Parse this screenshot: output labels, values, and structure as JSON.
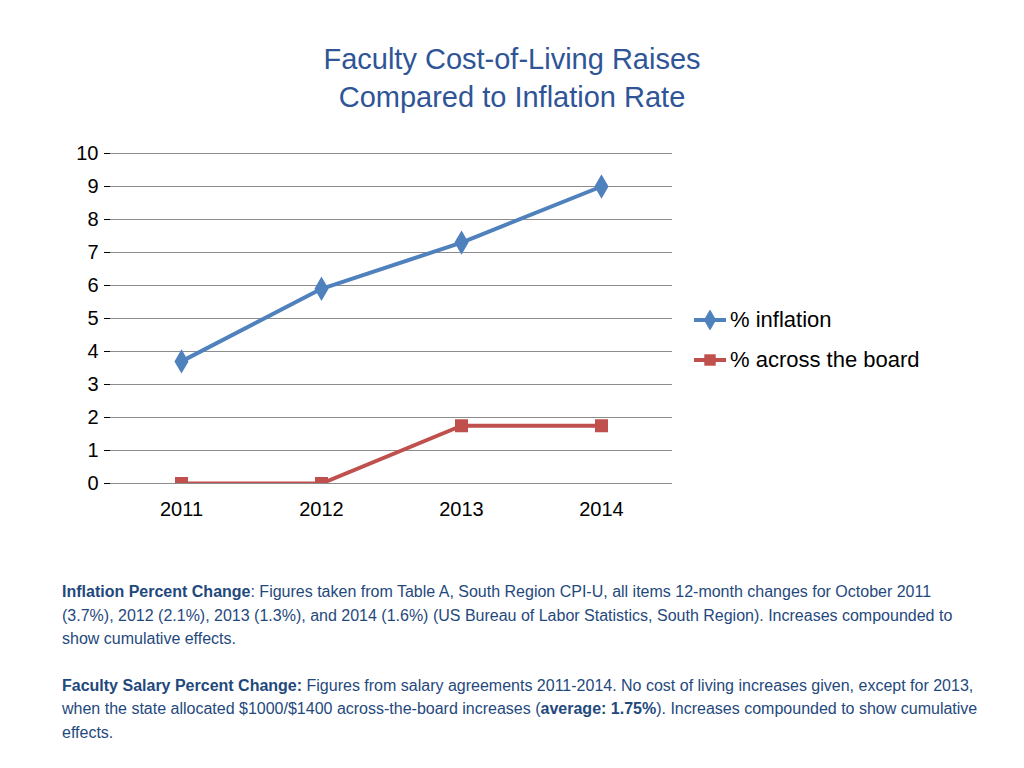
{
  "chart_data": {
    "type": "line",
    "title": "Faculty Cost-of-Living Raises",
    "subtitle": "Compared to Inflation Rate",
    "categories": [
      "2011",
      "2012",
      "2013",
      "2014"
    ],
    "series": [
      {
        "name": "% inflation",
        "color": "#4F81BD",
        "marker": "diamond",
        "values": [
          3.7,
          5.9,
          7.3,
          9.0
        ]
      },
      {
        "name": "% across the board",
        "color": "#C0504D",
        "marker": "square",
        "values": [
          0,
          0,
          1.75,
          1.75
        ]
      }
    ],
    "ylim": [
      0,
      10
    ],
    "yticks": [
      0,
      1,
      2,
      3,
      4,
      5,
      6,
      7,
      8,
      9,
      10
    ],
    "grid": true,
    "legend": "right",
    "notes": [
      [
        {
          "text": "Inflation Percent Change",
          "bold": true
        },
        {
          "text": ": Figures taken from Table A, South Region CPI-U, all items 12-month changes for October 2011 (3.7%), 2012 (2.1%), 2013 (1.3%), and 2014 (1.6%) (US Bureau of Labor Statistics, South Region). Increases compounded to show cumulative effects."
        }
      ],
      [
        {
          "text": "Faculty Salary Percent Change:",
          "bold": true
        },
        {
          "text": " Figures from salary agreements 2011-2014. No cost of living increases given, except for 2013, when the state allocated $1000/$1400 across-the-board increases ("
        },
        {
          "text": "average: 1.75%",
          "bold": true
        },
        {
          "text": "). Increases compounded to show cumulative effects."
        }
      ]
    ]
  }
}
